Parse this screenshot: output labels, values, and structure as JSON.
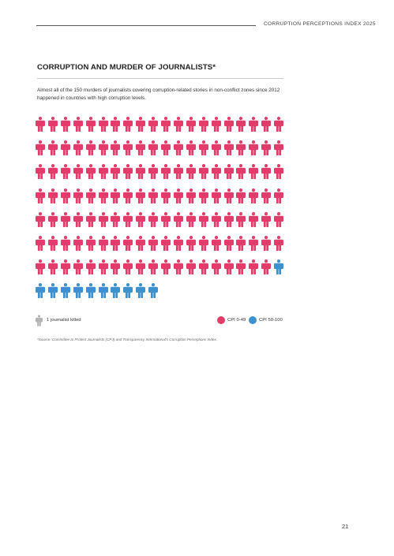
{
  "header": {
    "label": "CORRUPTION PERCEPTIONS INDEX 2025"
  },
  "title": "CORRUPTION AND MURDER OF JOURNALISTS*",
  "intro": "Almost all of the 150 murders of journalists covering corruption-related stories in non-conflict zones since 2012 happened in countries with high corruption levels.",
  "chart_data": {
    "type": "pictogram",
    "unit": "1 journalist killed",
    "total": 150,
    "columns": 20,
    "series": [
      {
        "name": "CPI 0-49",
        "value": 139,
        "color": "#e23c6b"
      },
      {
        "name": "CPI 50-100",
        "value": 11,
        "color": "#3d91cf"
      }
    ],
    "unit_icon_color": "#b3b3b3"
  },
  "legend": {
    "unit_label": "1 journalist killed",
    "items": [
      {
        "label": "CPI 0-49",
        "color": "#e23c6b"
      },
      {
        "label": "CPI 50-100",
        "color": "#3d91cf"
      }
    ]
  },
  "source": "*Source: Committee to Protect Journalists (CPJ) and Transparency International's Corruption Perceptions Index.",
  "page_number": "21"
}
